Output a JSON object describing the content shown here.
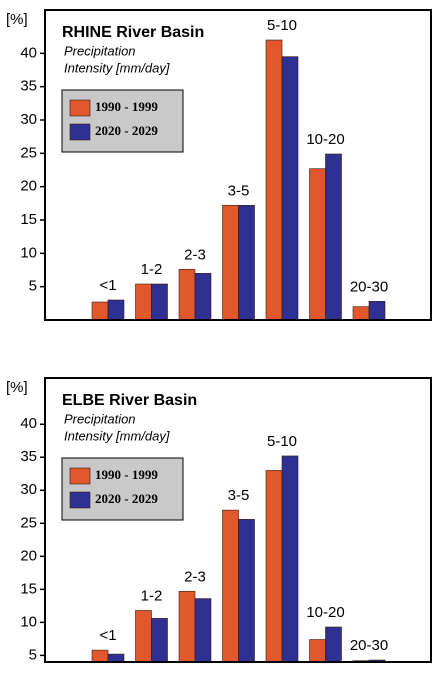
{
  "chart_data": [
    {
      "type": "bar",
      "title": "RHINE River Basin",
      "subtitle": [
        "Precipitation",
        "Intensity [mm/day]"
      ],
      "ylabel": "[%]",
      "categories": [
        "<1",
        "1-2",
        "2-3",
        "3-5",
        "5-10",
        "10-20",
        "20-30"
      ],
      "series": [
        {
          "name": "1990 -  1999",
          "color": "#e0582c",
          "values": [
            2.7,
            5.4,
            7.6,
            17.2,
            42,
            22.7,
            2.0
          ]
        },
        {
          "name": "2020  - 2029",
          "color": "#2e3192",
          "values": [
            3.0,
            5.4,
            7.0,
            17.2,
            39.5,
            24.9,
            2.8
          ]
        }
      ],
      "ylim": [
        0,
        46.5
      ],
      "yticks": [
        5,
        10,
        15,
        20,
        25,
        30,
        35,
        40
      ]
    },
    {
      "type": "bar",
      "title": "ELBE River Basin",
      "subtitle": [
        "Precipitation",
        "Intensity [mm/day]"
      ],
      "ylabel": "[%]",
      "categories": [
        "<1",
        "1-2",
        "2-3",
        "3-5",
        "5-10",
        "10-20",
        "20-30"
      ],
      "series": [
        {
          "name": "1990 -  1999",
          "color": "#e0582c",
          "values": [
            5.8,
            11.8,
            14.7,
            27,
            33,
            7.4,
            4.2
          ]
        },
        {
          "name": "2020  - 2029",
          "color": "#2e3192",
          "values": [
            5.2,
            10.6,
            13.6,
            25.6,
            35.2,
            9.3,
            4.3
          ]
        }
      ],
      "ylim": [
        4,
        47
      ],
      "yticks": [
        5,
        10,
        15,
        20,
        25,
        30,
        35,
        40
      ]
    }
  ]
}
